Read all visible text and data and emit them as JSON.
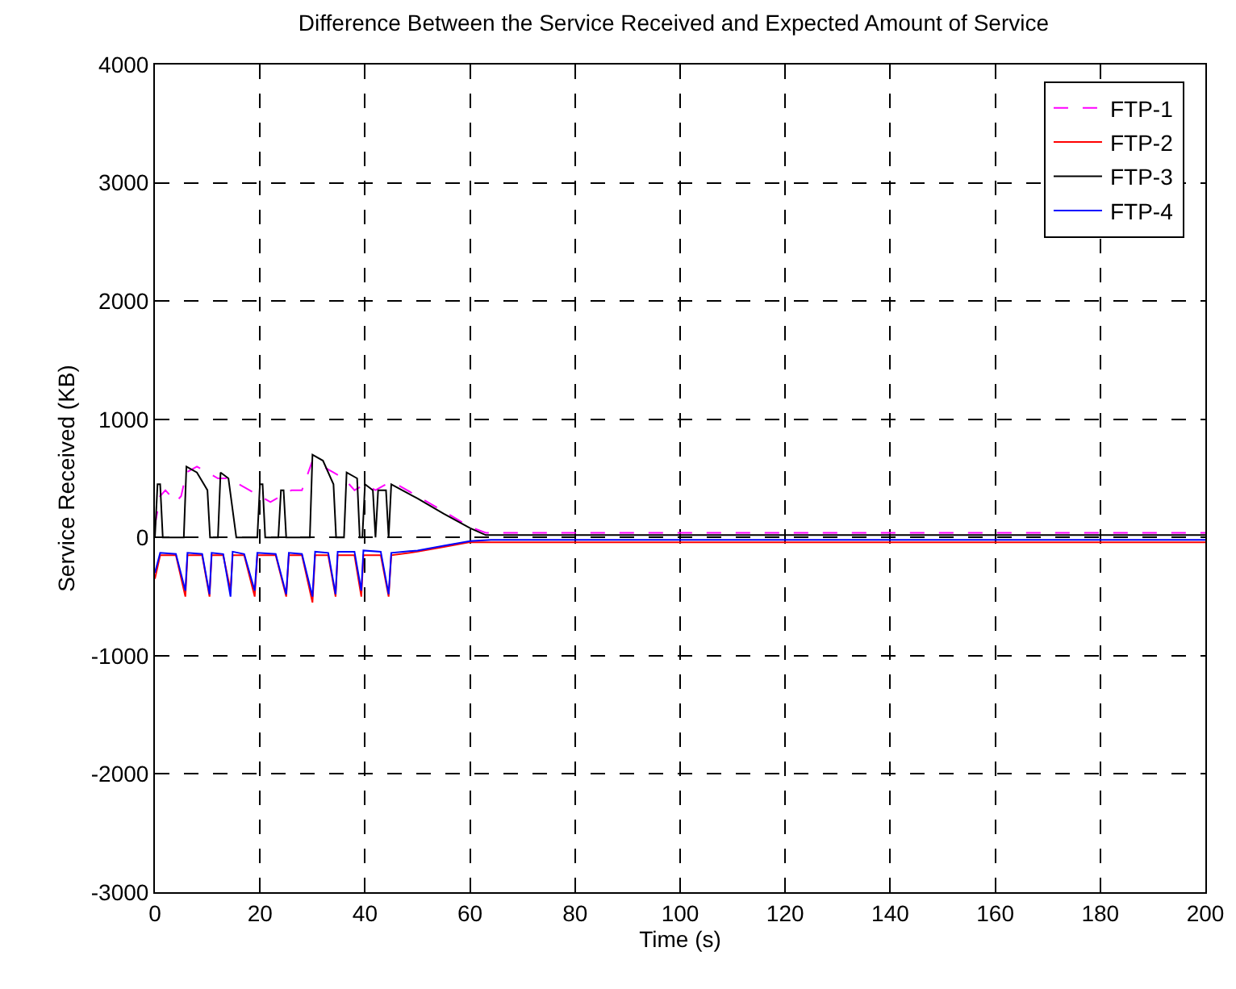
{
  "chart_data": {
    "type": "line",
    "title": "Difference Between the Service Received and Expected Amount of Service",
    "xlabel": "Time (s)",
    "ylabel": "Service Received (KB)",
    "xlim": [
      0,
      200
    ],
    "xticks": [
      0,
      20,
      40,
      60,
      80,
      100,
      120,
      140,
      160,
      180,
      200
    ],
    "ylim": [
      -3000,
      4000
    ],
    "yticks": [
      -3000,
      -2000,
      -1000,
      0,
      1000,
      2000,
      3000,
      4000
    ],
    "grid": true,
    "legend": "top right",
    "marker": "none",
    "series": [
      {
        "name": "FTP-1",
        "color": "#ff00ff",
        "line_style": "dashed",
        "x": [
          0,
          1,
          2,
          4,
          5,
          6,
          8,
          10,
          12,
          14,
          16,
          18,
          20,
          22,
          24,
          26,
          28,
          30,
          32,
          34,
          36,
          38,
          40,
          42,
          44,
          46,
          50,
          55,
          60,
          63,
          80,
          100,
          120,
          140,
          160,
          180,
          200
        ],
        "values": [
          100,
          350,
          400,
          300,
          350,
          550,
          600,
          550,
          500,
          500,
          450,
          400,
          350,
          300,
          350,
          400,
          400,
          650,
          600,
          550,
          500,
          400,
          450,
          400,
          450,
          450,
          350,
          220,
          90,
          40,
          40,
          40,
          40,
          40,
          40,
          40,
          40
        ]
      },
      {
        "name": "FTP-2",
        "color": "#ff0000",
        "line_style": "solid",
        "x": [
          0,
          1,
          4,
          5.8,
          6.2,
          9,
          10.4,
          10.8,
          13,
          14.4,
          14.8,
          17,
          19,
          19.5,
          23,
          25,
          25.5,
          28,
          30,
          30.5,
          33,
          34.4,
          34.8,
          38,
          39.3,
          39.7,
          43,
          44.5,
          45,
          50,
          55,
          60,
          64,
          80,
          100,
          120,
          140,
          160,
          180,
          200
        ],
        "values": [
          -350,
          -150,
          -150,
          -500,
          -150,
          -150,
          -500,
          -150,
          -150,
          -450,
          -150,
          -150,
          -500,
          -150,
          -150,
          -500,
          -150,
          -150,
          -550,
          -150,
          -150,
          -500,
          -150,
          -150,
          -500,
          -150,
          -150,
          -500,
          -150,
          -120,
          -80,
          -40,
          -40,
          -40,
          -40,
          -40,
          -40,
          -40,
          -40,
          -40
        ]
      },
      {
        "name": "FTP-3",
        "color": "#000000",
        "line_style": "solid",
        "x": [
          0,
          0.5,
          1,
          1.5,
          5.5,
          6,
          8,
          10,
          10.5,
          12,
          12.5,
          14,
          15.5,
          16,
          19.5,
          20,
          20.5,
          21,
          23.5,
          24,
          24.5,
          25,
          29.5,
          30,
          32,
          34,
          34.5,
          36,
          36.5,
          38.5,
          39,
          39.5,
          40,
          41.5,
          42,
          42.5,
          44,
          44.5,
          45,
          50,
          55,
          60,
          63,
          70,
          100,
          150,
          200
        ],
        "values": [
          0,
          450,
          450,
          0,
          0,
          600,
          550,
          400,
          0,
          0,
          550,
          500,
          0,
          0,
          0,
          450,
          450,
          0,
          0,
          400,
          400,
          0,
          0,
          700,
          650,
          450,
          0,
          0,
          550,
          500,
          0,
          0,
          450,
          400,
          0,
          400,
          400,
          0,
          450,
          330,
          200,
          80,
          20,
          20,
          20,
          20,
          20
        ]
      },
      {
        "name": "FTP-4",
        "color": "#0000ff",
        "line_style": "solid",
        "x": [
          0,
          1,
          4,
          5.8,
          6.2,
          9,
          10.4,
          10.8,
          13,
          14.4,
          14.8,
          17,
          19,
          19.5,
          23,
          25,
          25.5,
          28,
          30,
          30.5,
          33,
          34.4,
          34.8,
          38,
          39.3,
          39.7,
          43,
          44.5,
          45,
          50,
          55,
          60,
          64,
          80,
          100,
          120,
          140,
          160,
          180,
          200
        ],
        "values": [
          -300,
          -130,
          -140,
          -450,
          -130,
          -140,
          -480,
          -130,
          -140,
          -500,
          -120,
          -140,
          -450,
          -130,
          -140,
          -480,
          -130,
          -140,
          -500,
          -120,
          -130,
          -480,
          -120,
          -120,
          -450,
          -110,
          -120,
          -480,
          -130,
          -110,
          -70,
          -30,
          -20,
          -20,
          -20,
          -20,
          -20,
          -20,
          -20,
          -20
        ]
      }
    ]
  }
}
